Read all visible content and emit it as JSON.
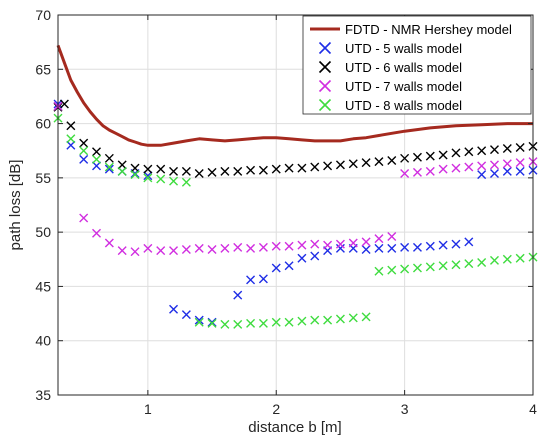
{
  "chart_data": {
    "type": "line",
    "title": "",
    "xlabel": "distance b [m]",
    "ylabel": "path loss [dB]",
    "xlim": [
      0.3,
      4
    ],
    "ylim": [
      35,
      70
    ],
    "xticks": [
      1,
      2,
      3,
      4
    ],
    "yticks": [
      35,
      40,
      45,
      50,
      55,
      60,
      65,
      70
    ],
    "grid": true,
    "legend_position": "top-right",
    "series": [
      {
        "name": "FDTD - NMR Hershey model",
        "style": "line",
        "color": "#a52a1f",
        "x": [
          0.3,
          0.35,
          0.4,
          0.45,
          0.5,
          0.55,
          0.6,
          0.65,
          0.7,
          0.75,
          0.8,
          0.85,
          0.9,
          0.95,
          1.0,
          1.1,
          1.2,
          1.3,
          1.4,
          1.5,
          1.6,
          1.7,
          1.8,
          1.9,
          2.0,
          2.1,
          2.2,
          2.3,
          2.4,
          2.5,
          2.6,
          2.7,
          2.8,
          2.9,
          3.0,
          3.2,
          3.4,
          3.6,
          3.8,
          4.0
        ],
        "y": [
          67.2,
          65.6,
          64.0,
          62.9,
          61.9,
          61.1,
          60.4,
          59.8,
          59.4,
          59.1,
          58.8,
          58.5,
          58.3,
          58.1,
          58.0,
          58.0,
          58.2,
          58.4,
          58.6,
          58.5,
          58.4,
          58.5,
          58.6,
          58.7,
          58.7,
          58.6,
          58.5,
          58.4,
          58.4,
          58.4,
          58.6,
          58.7,
          58.9,
          59.1,
          59.3,
          59.6,
          59.8,
          59.9,
          60.0,
          60.0
        ]
      },
      {
        "name": "UTD - 5 walls model",
        "style": "markers",
        "marker": "x",
        "color": "#1f2ee6",
        "x": [
          0.3,
          0.4,
          0.5,
          0.6,
          0.7,
          0.8,
          0.9,
          1.0,
          1.2,
          1.3,
          1.4,
          1.5,
          1.7,
          1.8,
          1.9,
          2.0,
          2.1,
          2.2,
          2.3,
          2.4,
          2.5,
          2.6,
          2.7,
          2.8,
          2.9,
          3.0,
          3.1,
          3.2,
          3.3,
          3.4,
          3.5,
          3.6,
          3.7,
          3.8,
          3.9,
          4.0
        ],
        "y": [
          61.8,
          58.0,
          56.7,
          56.1,
          55.8,
          55.6,
          55.4,
          55.2,
          42.9,
          42.4,
          41.9,
          41.7,
          44.2,
          45.6,
          45.7,
          46.7,
          46.9,
          47.6,
          47.8,
          48.3,
          48.5,
          48.5,
          48.4,
          48.5,
          48.5,
          48.6,
          48.6,
          48.7,
          48.8,
          48.9,
          49.1,
          55.3,
          55.4,
          55.6,
          55.6,
          55.7
        ]
      },
      {
        "name": "UTD - 6 walls model",
        "style": "markers",
        "marker": "x",
        "color": "#000000",
        "x": [
          0.3,
          0.35,
          0.4,
          0.5,
          0.6,
          0.7,
          0.8,
          0.9,
          1.0,
          1.1,
          1.2,
          1.3,
          1.4,
          1.5,
          1.6,
          1.7,
          1.8,
          1.9,
          2.0,
          2.1,
          2.2,
          2.3,
          2.4,
          2.5,
          2.6,
          2.7,
          2.8,
          2.9,
          3.0,
          3.1,
          3.2,
          3.3,
          3.4,
          3.5,
          3.6,
          3.7,
          3.8,
          3.9,
          4.0
        ],
        "y": [
          61.5,
          61.8,
          59.8,
          58.2,
          57.4,
          56.8,
          56.2,
          55.9,
          55.8,
          55.8,
          55.6,
          55.6,
          55.4,
          55.5,
          55.6,
          55.6,
          55.7,
          55.7,
          55.8,
          55.9,
          55.9,
          56.0,
          56.1,
          56.2,
          56.3,
          56.4,
          56.5,
          56.6,
          56.8,
          56.9,
          57.0,
          57.1,
          57.3,
          57.4,
          57.5,
          57.6,
          57.7,
          57.8,
          57.9
        ]
      },
      {
        "name": "UTD - 7 walls model",
        "style": "markers",
        "marker": "x",
        "color": "#d12ee0",
        "x": [
          0.3,
          0.5,
          0.6,
          0.7,
          0.8,
          0.9,
          1.0,
          1.1,
          1.2,
          1.3,
          1.4,
          1.5,
          1.6,
          1.7,
          1.8,
          1.9,
          2.0,
          2.1,
          2.2,
          2.3,
          2.4,
          2.5,
          2.6,
          2.7,
          2.8,
          2.9,
          3.0,
          3.1,
          3.2,
          3.3,
          3.4,
          3.5,
          3.6,
          3.7,
          3.8,
          3.9,
          4.0
        ],
        "y": [
          61.6,
          51.3,
          49.9,
          49.0,
          48.3,
          48.2,
          48.5,
          48.3,
          48.3,
          48.4,
          48.5,
          48.4,
          48.5,
          48.6,
          48.5,
          48.6,
          48.7,
          48.7,
          48.8,
          48.9,
          48.8,
          48.9,
          49.0,
          49.1,
          49.4,
          49.6,
          55.4,
          55.5,
          55.6,
          55.8,
          55.9,
          56.0,
          56.1,
          56.2,
          56.3,
          56.4,
          56.5
        ]
      },
      {
        "name": "UTD - 8 walls model",
        "style": "markers",
        "marker": "x",
        "color": "#3fdc3f",
        "x": [
          0.3,
          0.4,
          0.5,
          0.6,
          0.7,
          0.8,
          0.9,
          1.0,
          1.1,
          1.2,
          1.3,
          1.4,
          1.5,
          1.6,
          1.7,
          1.8,
          1.9,
          2.0,
          2.1,
          2.2,
          2.3,
          2.4,
          2.5,
          2.6,
          2.7,
          2.8,
          2.9,
          3.0,
          3.1,
          3.2,
          3.3,
          3.4,
          3.5,
          3.6,
          3.7,
          3.8,
          3.9,
          4.0
        ],
        "y": [
          60.5,
          58.6,
          57.5,
          56.7,
          56.0,
          55.6,
          55.3,
          55.0,
          54.9,
          54.7,
          54.6,
          41.7,
          41.6,
          41.5,
          41.5,
          41.6,
          41.6,
          41.7,
          41.7,
          41.8,
          41.9,
          41.9,
          42.0,
          42.1,
          42.2,
          46.4,
          46.5,
          46.6,
          46.7,
          46.8,
          46.9,
          47.0,
          47.1,
          47.2,
          47.4,
          47.5,
          47.6,
          47.7
        ]
      }
    ]
  }
}
